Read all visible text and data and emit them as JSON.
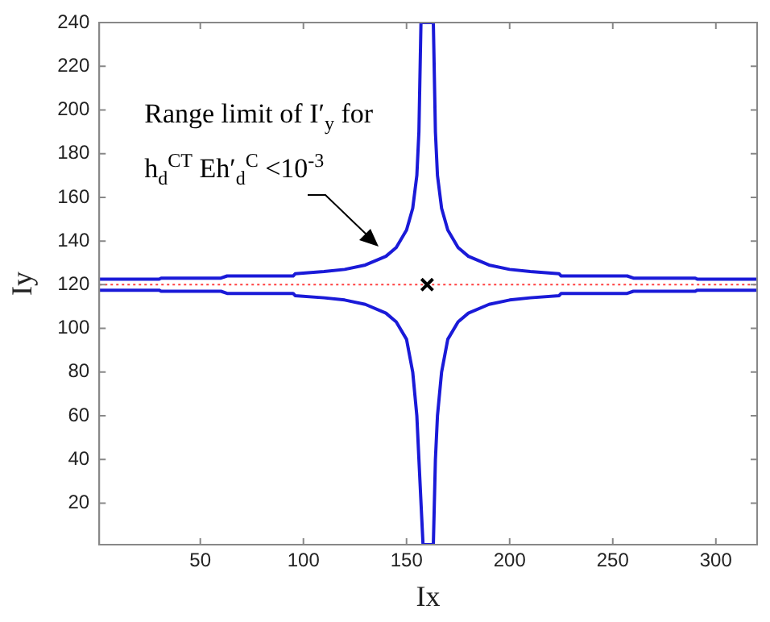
{
  "chart_data": {
    "type": "line",
    "xlabel": "Ix",
    "ylabel": "Iy",
    "xlim": [
      1,
      320
    ],
    "ylim": [
      1,
      240
    ],
    "xticks": [
      50,
      100,
      150,
      200,
      250,
      300
    ],
    "yticks": [
      20,
      40,
      60,
      80,
      100,
      120,
      140,
      160,
      180,
      200,
      220,
      240
    ],
    "grid": false,
    "legend": false,
    "marker": "none",
    "line_style": "solid",
    "series": [
      {
        "color": "#1a1ad8",
        "x": [
          1,
          30,
          31,
          60,
          63,
          95,
          96,
          110,
          120,
          130,
          140,
          145,
          150,
          153,
          155,
          156,
          157,
          163,
          164,
          165,
          167,
          170,
          175,
          180,
          190,
          200,
          210,
          224,
          225,
          257,
          260,
          290,
          291,
          320
        ],
        "values": [
          122.5,
          122.5,
          123,
          123,
          124,
          124,
          125,
          126,
          127,
          129,
          133,
          137,
          145,
          155,
          170,
          190,
          240,
          240,
          190,
          170,
          155,
          145,
          137,
          133,
          129,
          127,
          126,
          125,
          124,
          124,
          123,
          123,
          122.5,
          122.5
        ]
      },
      {
        "color": "#1a1ad8",
        "x": [
          1,
          30,
          31,
          60,
          63,
          95,
          96,
          110,
          120,
          130,
          140,
          145,
          150,
          153,
          155,
          156,
          158,
          163,
          164,
          165,
          167,
          170,
          175,
          180,
          190,
          200,
          210,
          224,
          225,
          257,
          260,
          290,
          291,
          320
        ],
        "values": [
          117.5,
          117.5,
          117,
          117,
          116,
          116,
          115,
          114,
          113,
          111,
          107,
          103,
          95,
          80,
          60,
          40,
          1,
          1,
          40,
          60,
          80,
          95,
          103,
          107,
          111,
          113,
          114,
          115,
          116,
          116,
          117,
          117,
          117.5,
          117.5
        ]
      },
      {
        "type": "scatter",
        "marker": "cross",
        "color": "#000000",
        "x": [
          160
        ],
        "values": [
          120
        ]
      }
    ],
    "ref_lines": [
      {
        "axis": "y",
        "value": 120,
        "color": "#ff4040",
        "line_style": "dotted"
      }
    ],
    "annotations": [
      "Range limit of I′$_{y}$ for h$_{d}$$^{CT}$ Eh′$_{d}$$^{C}$ <10$^{-3}$"
    ]
  }
}
